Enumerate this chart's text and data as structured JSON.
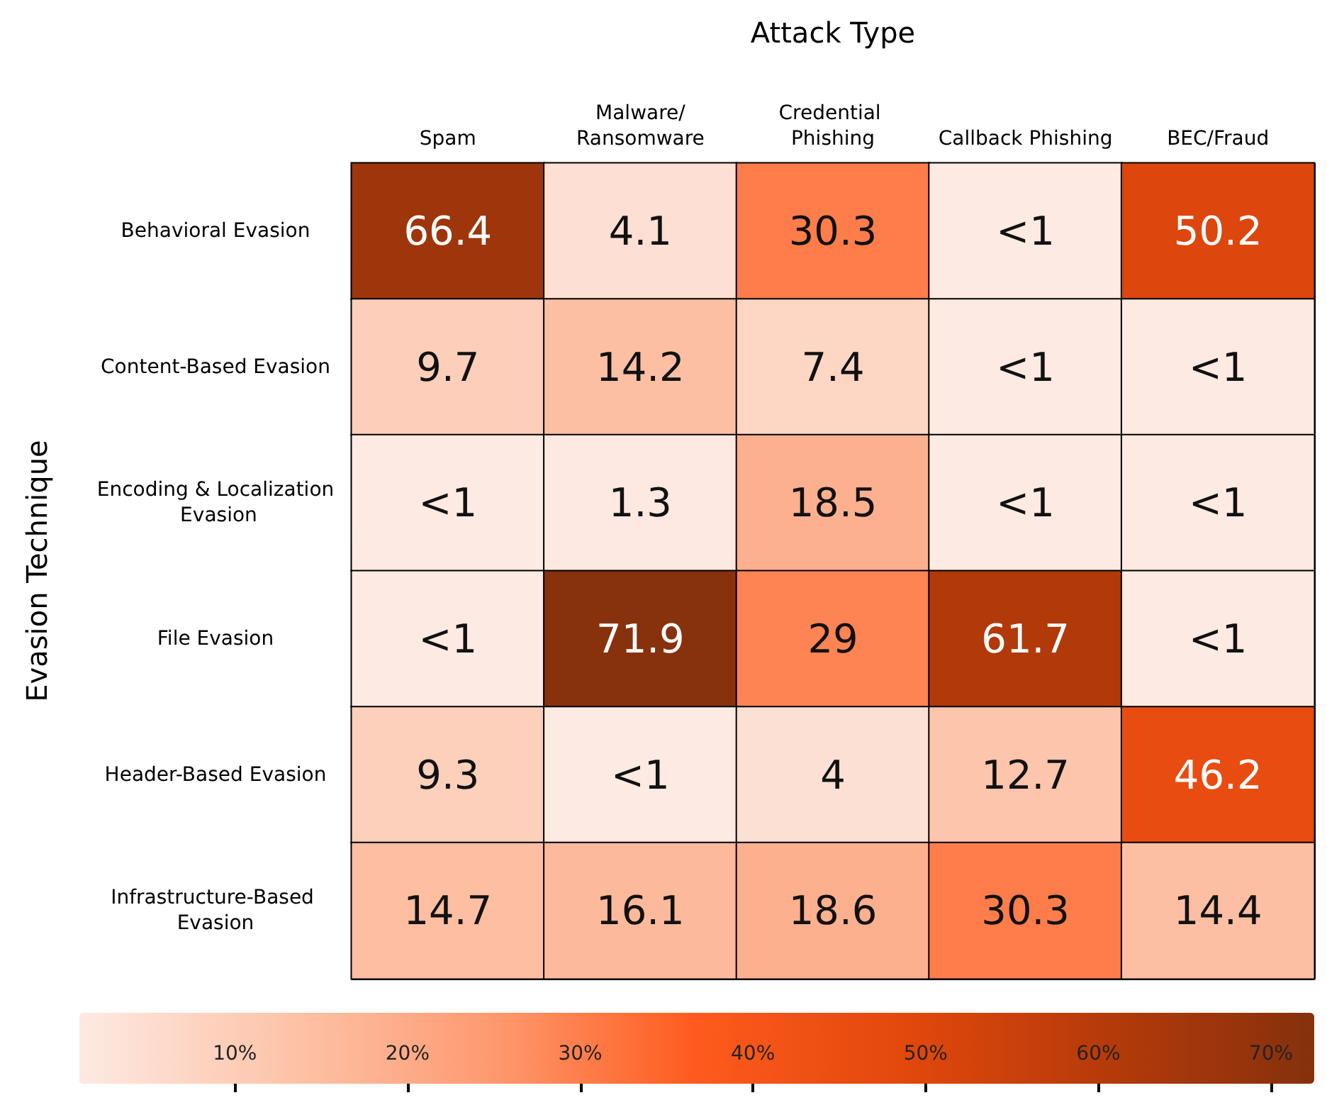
{
  "chart_data": {
    "type": "heatmap",
    "xlabel": "Attack Type",
    "ylabel": "Evasion Technique",
    "categories": [
      "Spam",
      "Malware/Ransomware",
      "Credential Phishing",
      "Callback Phishing",
      "BEC/Fraud"
    ],
    "y_categories": [
      "Behavioral Evasion",
      "Content-Based Evasion",
      "Encoding & Localization Evasion",
      "File Evasion",
      "Header-Based Evasion",
      "Infrastructure-Based Evasion"
    ],
    "cells": [
      [
        66.4,
        4.1,
        30.3,
        0.5,
        50.2
      ],
      [
        9.7,
        14.2,
        7.4,
        0.5,
        0.5
      ],
      [
        0.5,
        1.3,
        18.5,
        0.5,
        0.5
      ],
      [
        0.5,
        71.9,
        29,
        61.7,
        0.5
      ],
      [
        9.3,
        0.5,
        4,
        12.7,
        46.2
      ],
      [
        14.7,
        16.1,
        18.6,
        30.3,
        14.4
      ]
    ],
    "cell_labels": [
      [
        "66.4",
        "4.1",
        "30.3",
        "<1",
        "50.2"
      ],
      [
        "9.7",
        "14.2",
        "7.4",
        "<1",
        "<1"
      ],
      [
        "<1",
        "1.3",
        "18.5",
        "<1",
        "<1"
      ],
      [
        "<1",
        "71.9",
        "29",
        "61.7",
        "<1"
      ],
      [
        "9.3",
        "<1",
        "4",
        "12.7",
        "46.2"
      ],
      [
        "14.7",
        "16.1",
        "18.6",
        "30.3",
        "14.4"
      ]
    ],
    "clim": [
      1,
      72.5
    ],
    "cticks": [
      {
        "value": 10,
        "label": "10%"
      },
      {
        "value": 20,
        "label": "20%"
      },
      {
        "value": 30,
        "label": "30%"
      },
      {
        "value": 40,
        "label": "40%"
      },
      {
        "value": 50,
        "label": "50%"
      },
      {
        "value": 60,
        "label": "60%"
      },
      {
        "value": 70,
        "label": "70%"
      }
    ]
  }
}
